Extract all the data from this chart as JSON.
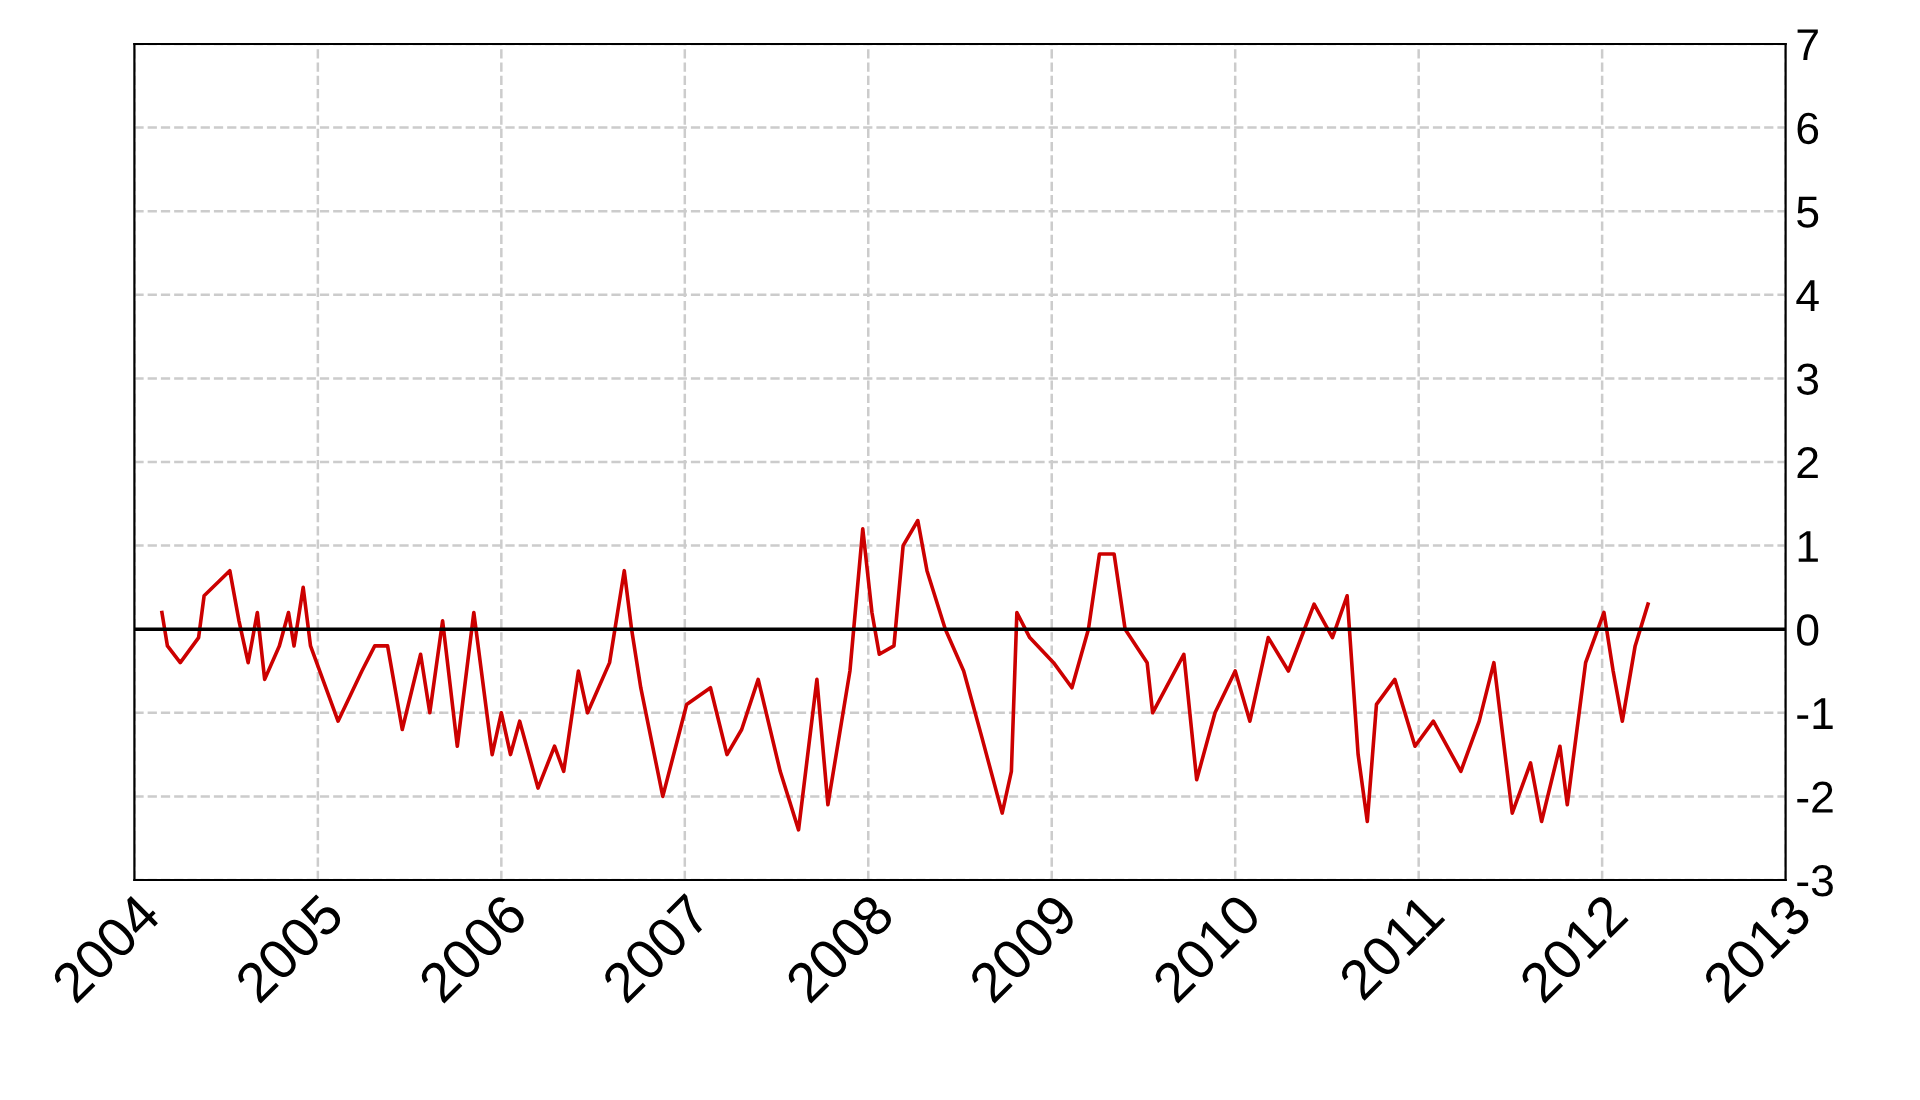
{
  "chart_data": {
    "type": "line",
    "xlim": [
      2004,
      2013
    ],
    "xticks": [
      2004,
      2005,
      2006,
      2007,
      2008,
      2009,
      2010,
      2011,
      2012,
      2013
    ],
    "ylim": [
      -3,
      7
    ],
    "yticks": [
      -3,
      -2,
      -1,
      0,
      1,
      2,
      3,
      4,
      5,
      6,
      7
    ],
    "grid": true,
    "ref_lines": [
      {
        "axis": "y",
        "value": 0,
        "color": "#000000"
      }
    ],
    "series": [
      {
        "color": "#cc0000",
        "x": [
          2004.15,
          2004.18,
          2004.25,
          2004.35,
          2004.38,
          2004.52,
          2004.57,
          2004.62,
          2004.67,
          2004.71,
          2004.79,
          2004.84,
          2004.87,
          2004.92,
          2004.96,
          2005.11,
          2005.24,
          2005.31,
          2005.38,
          2005.46,
          2005.56,
          2005.61,
          2005.68,
          2005.76,
          2005.85,
          2005.95,
          2006.0,
          2006.05,
          2006.1,
          2006.2,
          2006.29,
          2006.34,
          2006.42,
          2006.47,
          2006.59,
          2006.67,
          2006.71,
          2006.76,
          2006.88,
          2007.01,
          2007.14,
          2007.23,
          2007.31,
          2007.4,
          2007.52,
          2007.62,
          2007.72,
          2007.78,
          2007.9,
          2007.97,
          2008.02,
          2008.06,
          2008.14,
          2008.19,
          2008.27,
          2008.32,
          2008.42,
          2008.52,
          2008.62,
          2008.73,
          2008.78,
          2008.81,
          2008.88,
          2009.01,
          2009.11,
          2009.2,
          2009.26,
          2009.34,
          2009.4,
          2009.52,
          2009.55,
          2009.72,
          2009.79,
          2009.89,
          2010.0,
          2010.08,
          2010.18,
          2010.29,
          2010.43,
          2010.53,
          2010.61,
          2010.67,
          2010.72,
          2010.77,
          2010.87,
          2010.98,
          2011.08,
          2011.23,
          2011.33,
          2011.41,
          2011.51,
          2011.61,
          2011.67,
          2011.77,
          2011.81,
          2011.91,
          2012.01,
          2012.06,
          2012.11,
          2012.18,
          2012.25
        ],
        "values": [
          0.2,
          -0.2,
          -0.4,
          -0.1,
          0.4,
          0.7,
          0.1,
          -0.4,
          0.2,
          -0.6,
          -0.2,
          0.2,
          -0.2,
          0.5,
          -0.2,
          -1.1,
          -0.5,
          -0.2,
          -0.2,
          -1.2,
          -0.3,
          -1.0,
          0.1,
          -1.4,
          0.2,
          -1.5,
          -1.0,
          -1.5,
          -1.1,
          -1.9,
          -1.4,
          -1.7,
          -0.5,
          -1.0,
          -0.4,
          0.7,
          0.0,
          -0.7,
          -2.0,
          -0.9,
          -0.7,
          -1.5,
          -1.2,
          -0.6,
          -1.7,
          -2.4,
          -0.6,
          -2.1,
          -0.5,
          1.2,
          0.2,
          -0.3,
          -0.2,
          1.0,
          1.3,
          0.7,
          0.0,
          -0.5,
          -1.3,
          -2.2,
          -1.7,
          0.2,
          -0.1,
          -0.4,
          -0.7,
          0.0,
          0.9,
          0.9,
          0.0,
          -0.4,
          -1.0,
          -0.3,
          -1.8,
          -1.0,
          -0.5,
          -1.1,
          -0.1,
          -0.5,
          0.3,
          -0.1,
          0.4,
          -1.5,
          -2.3,
          -0.9,
          -0.6,
          -1.4,
          -1.1,
          -1.7,
          -1.1,
          -0.4,
          -2.2,
          -1.6,
          -2.3,
          -1.4,
          -2.1,
          -0.4,
          0.2,
          -0.5,
          -1.1,
          -0.2,
          0.3
        ]
      }
    ]
  }
}
